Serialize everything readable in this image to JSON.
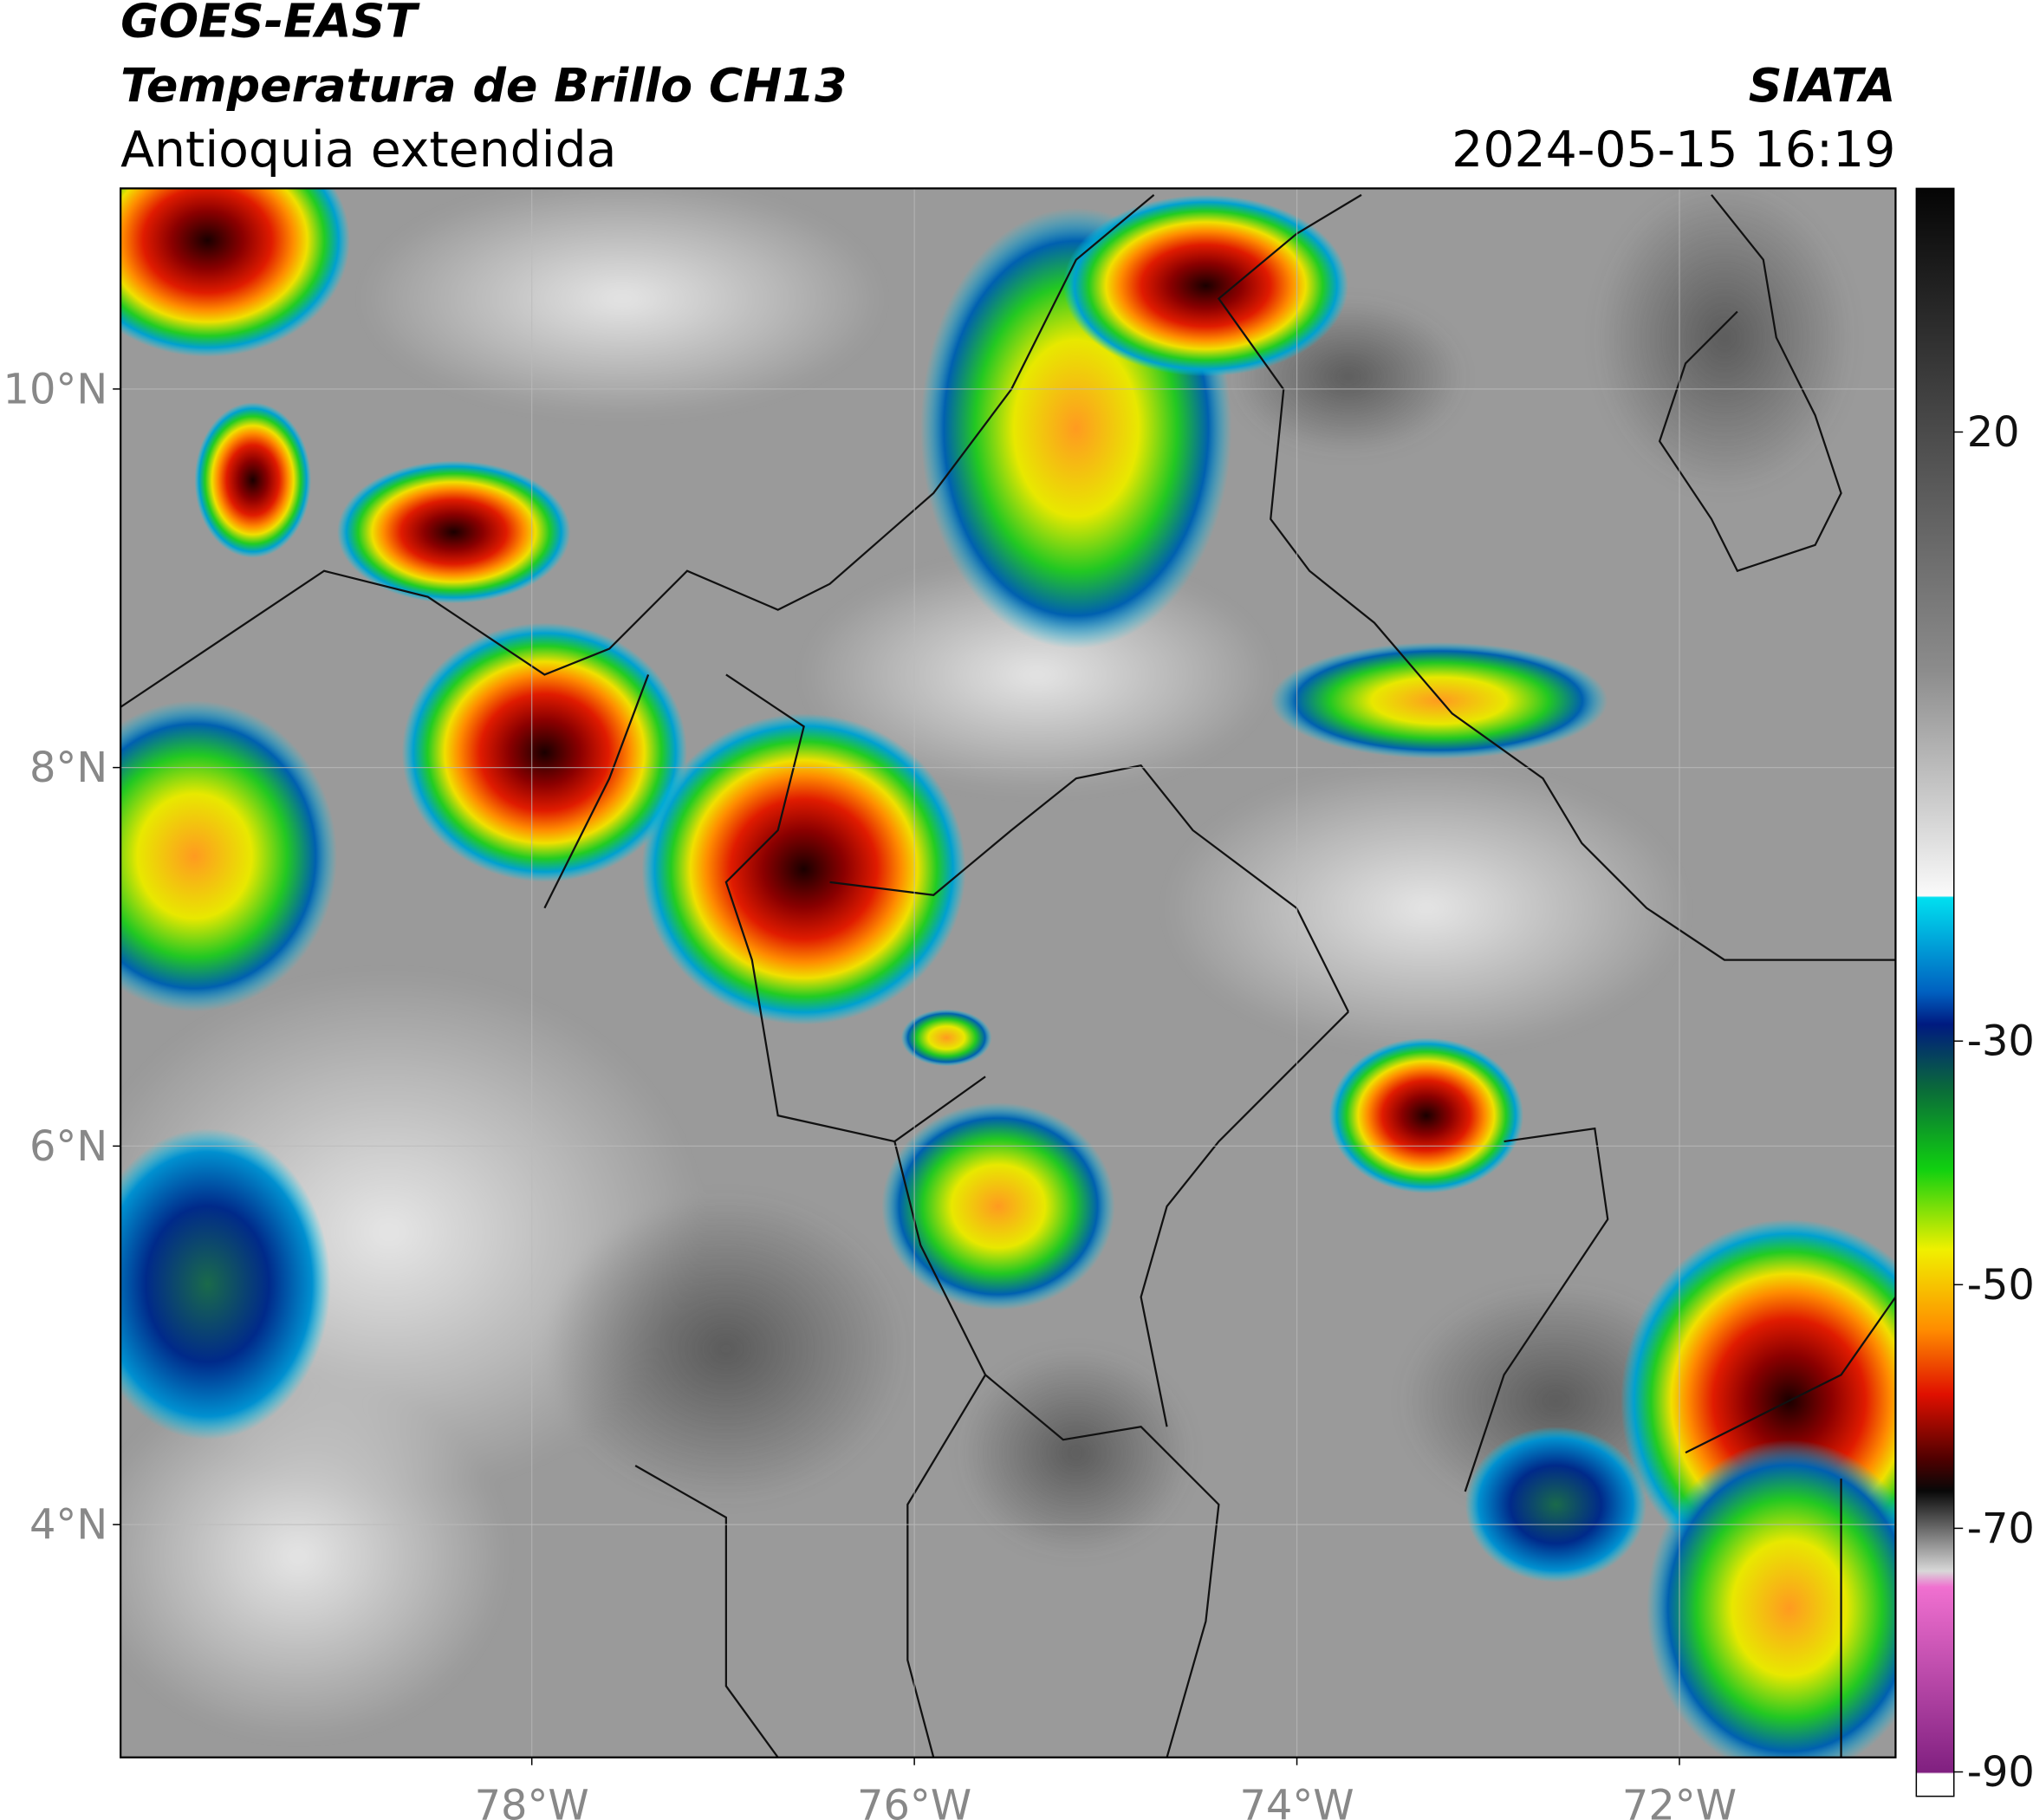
{
  "header": {
    "satellite": "GOES-EAST",
    "product": "Temperatura de Brillo CH13",
    "region": "Antioquia extendida",
    "source": "SIATA",
    "datetime": "2024-05-15 16:19"
  },
  "map": {
    "xlim": [
      -80.15,
      -70.87
    ],
    "ylim": [
      2.77,
      11.06
    ],
    "grid": true,
    "xticks": [
      {
        "value": -78,
        "label": "78°W"
      },
      {
        "value": -76,
        "label": "76°W"
      },
      {
        "value": -74,
        "label": "74°W"
      },
      {
        "value": -72,
        "label": "72°W"
      }
    ],
    "yticks": [
      {
        "value": 4,
        "label": "4°N"
      },
      {
        "value": 6,
        "label": "6°N"
      },
      {
        "value": 8,
        "label": "8°N"
      },
      {
        "value": 10,
        "label": "10°N"
      }
    ]
  },
  "colorbar": {
    "ylim": [
      -92,
      40
    ],
    "yticks": [
      20,
      -30,
      -50,
      -70,
      -90
    ]
  }
}
